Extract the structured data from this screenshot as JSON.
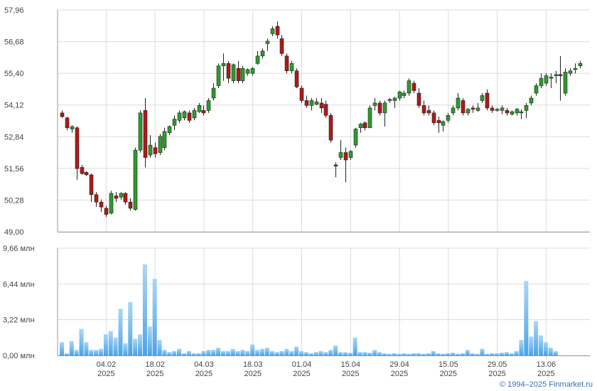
{
  "chart_data": [
    {
      "type": "candlestick",
      "title": "",
      "grid": true,
      "colors": {
        "up": "#2e9b2e",
        "down": "#b01818",
        "wick": "#222222",
        "grid": "#dcdcdc",
        "axis": "#999999"
      },
      "ylim": [
        49.0,
        57.96
      ],
      "y_ticks": [
        "57,96",
        "56,68",
        "55,40",
        "54,12",
        "52,84",
        "51,56",
        "50,28",
        "49,00"
      ],
      "candles": [
        {
          "o": 53.8,
          "h": 53.9,
          "l": 53.6,
          "c": 53.65
        },
        {
          "o": 53.6,
          "h": 53.65,
          "l": 53.1,
          "c": 53.2
        },
        {
          "o": 53.15,
          "h": 53.3,
          "l": 53.0,
          "c": 53.25
        },
        {
          "o": 53.2,
          "h": 53.25,
          "l": 51.1,
          "c": 51.55
        },
        {
          "o": 51.6,
          "h": 51.7,
          "l": 51.3,
          "c": 51.35
        },
        {
          "o": 51.4,
          "h": 51.45,
          "l": 51.25,
          "c": 51.3
        },
        {
          "o": 51.3,
          "h": 51.35,
          "l": 50.2,
          "c": 50.5
        },
        {
          "o": 50.5,
          "h": 50.6,
          "l": 50.0,
          "c": 50.2
        },
        {
          "o": 50.2,
          "h": 50.3,
          "l": 49.8,
          "c": 50.0
        },
        {
          "o": 49.95,
          "h": 50.05,
          "l": 49.6,
          "c": 49.7
        },
        {
          "o": 49.75,
          "h": 50.65,
          "l": 49.7,
          "c": 50.55
        },
        {
          "o": 50.45,
          "h": 50.6,
          "l": 50.2,
          "c": 50.35
        },
        {
          "o": 50.4,
          "h": 50.6,
          "l": 50.3,
          "c": 50.55
        },
        {
          "o": 50.55,
          "h": 50.6,
          "l": 50.1,
          "c": 50.2
        },
        {
          "o": 50.2,
          "h": 50.35,
          "l": 49.85,
          "c": 49.95
        },
        {
          "o": 49.9,
          "h": 52.4,
          "l": 49.85,
          "c": 52.3
        },
        {
          "o": 52.3,
          "h": 53.9,
          "l": 52.2,
          "c": 53.8
        },
        {
          "o": 53.9,
          "h": 54.4,
          "l": 51.6,
          "c": 52.0
        },
        {
          "o": 52.1,
          "h": 52.9,
          "l": 52.0,
          "c": 52.5
        },
        {
          "o": 52.4,
          "h": 52.6,
          "l": 52.0,
          "c": 52.15
        },
        {
          "o": 52.2,
          "h": 52.95,
          "l": 52.1,
          "c": 52.85
        },
        {
          "o": 52.4,
          "h": 53.2,
          "l": 52.3,
          "c": 53.05
        },
        {
          "o": 53.0,
          "h": 53.3,
          "l": 52.9,
          "c": 53.25
        },
        {
          "o": 53.3,
          "h": 53.7,
          "l": 53.1,
          "c": 53.55
        },
        {
          "o": 53.5,
          "h": 53.9,
          "l": 53.4,
          "c": 53.8
        },
        {
          "o": 53.6,
          "h": 53.9,
          "l": 53.5,
          "c": 53.85
        },
        {
          "o": 53.8,
          "h": 53.9,
          "l": 53.4,
          "c": 53.5
        },
        {
          "o": 53.6,
          "h": 54.0,
          "l": 53.5,
          "c": 53.9
        },
        {
          "o": 53.85,
          "h": 54.2,
          "l": 53.8,
          "c": 54.1
        },
        {
          "o": 53.9,
          "h": 54.1,
          "l": 53.7,
          "c": 53.8
        },
        {
          "o": 53.9,
          "h": 54.4,
          "l": 53.8,
          "c": 54.3
        },
        {
          "o": 54.4,
          "h": 55.0,
          "l": 54.3,
          "c": 54.8
        },
        {
          "o": 54.9,
          "h": 55.8,
          "l": 54.8,
          "c": 55.7
        },
        {
          "o": 55.7,
          "h": 56.2,
          "l": 55.1,
          "c": 55.8
        },
        {
          "o": 55.8,
          "h": 55.9,
          "l": 55.0,
          "c": 55.2
        },
        {
          "o": 55.1,
          "h": 55.8,
          "l": 55.0,
          "c": 55.75
        },
        {
          "o": 55.6,
          "h": 55.9,
          "l": 55.0,
          "c": 55.1
        },
        {
          "o": 55.1,
          "h": 55.7,
          "l": 55.0,
          "c": 55.6
        },
        {
          "o": 55.4,
          "h": 55.6,
          "l": 55.3,
          "c": 55.55
        },
        {
          "o": 55.4,
          "h": 55.65,
          "l": 55.3,
          "c": 55.6
        },
        {
          "o": 55.8,
          "h": 56.3,
          "l": 55.75,
          "c": 56.1
        },
        {
          "o": 56.1,
          "h": 56.4,
          "l": 56.0,
          "c": 56.3
        },
        {
          "o": 56.6,
          "h": 56.8,
          "l": 56.3,
          "c": 56.7
        },
        {
          "o": 57.0,
          "h": 57.3,
          "l": 56.9,
          "c": 57.2
        },
        {
          "o": 57.3,
          "h": 57.5,
          "l": 56.8,
          "c": 56.95
        },
        {
          "o": 56.8,
          "h": 56.95,
          "l": 56.1,
          "c": 56.2
        },
        {
          "o": 56.1,
          "h": 56.2,
          "l": 55.4,
          "c": 55.5
        },
        {
          "o": 55.5,
          "h": 55.9,
          "l": 55.4,
          "c": 55.8
        },
        {
          "o": 55.5,
          "h": 55.6,
          "l": 54.8,
          "c": 54.85
        },
        {
          "o": 54.8,
          "h": 54.9,
          "l": 54.2,
          "c": 54.3
        },
        {
          "o": 54.3,
          "h": 54.5,
          "l": 54.0,
          "c": 54.1
        },
        {
          "o": 54.1,
          "h": 54.4,
          "l": 53.9,
          "c": 54.3
        },
        {
          "o": 54.15,
          "h": 54.4,
          "l": 54.1,
          "c": 54.25
        },
        {
          "o": 54.2,
          "h": 54.4,
          "l": 53.8,
          "c": 54.0
        },
        {
          "o": 54.15,
          "h": 54.3,
          "l": 53.6,
          "c": 53.7
        },
        {
          "o": 53.7,
          "h": 53.8,
          "l": 52.6,
          "c": 52.7
        },
        {
          "o": 51.7,
          "h": 51.8,
          "l": 51.2,
          "c": 51.65
        },
        {
          "o": 52.0,
          "h": 52.7,
          "l": 51.9,
          "c": 52.2
        },
        {
          "o": 52.2,
          "h": 52.4,
          "l": 51.0,
          "c": 51.9
        },
        {
          "o": 52.0,
          "h": 52.3,
          "l": 51.9,
          "c": 52.25
        },
        {
          "o": 52.5,
          "h": 53.2,
          "l": 52.4,
          "c": 53.15
        },
        {
          "o": 53.2,
          "h": 53.4,
          "l": 53.0,
          "c": 53.35
        },
        {
          "o": 53.4,
          "h": 53.45,
          "l": 53.1,
          "c": 53.2
        },
        {
          "o": 53.2,
          "h": 54.1,
          "l": 53.2,
          "c": 54.0
        },
        {
          "o": 54.1,
          "h": 54.4,
          "l": 53.9,
          "c": 54.2
        },
        {
          "o": 54.2,
          "h": 54.3,
          "l": 53.7,
          "c": 53.8
        },
        {
          "o": 53.8,
          "h": 54.3,
          "l": 53.25,
          "c": 54.2
        },
        {
          "o": 54.3,
          "h": 54.4,
          "l": 54.2,
          "c": 54.35
        },
        {
          "o": 54.3,
          "h": 54.45,
          "l": 54.0,
          "c": 54.4
        },
        {
          "o": 54.4,
          "h": 54.7,
          "l": 54.3,
          "c": 54.65
        },
        {
          "o": 54.5,
          "h": 54.7,
          "l": 54.4,
          "c": 54.6
        },
        {
          "o": 54.6,
          "h": 55.2,
          "l": 54.5,
          "c": 55.1
        },
        {
          "o": 55.0,
          "h": 55.1,
          "l": 54.6,
          "c": 54.7
        },
        {
          "o": 54.6,
          "h": 54.8,
          "l": 54.0,
          "c": 54.1
        },
        {
          "o": 54.1,
          "h": 54.3,
          "l": 53.7,
          "c": 53.8
        },
        {
          "o": 53.9,
          "h": 54.1,
          "l": 53.7,
          "c": 53.8
        },
        {
          "o": 53.8,
          "h": 53.9,
          "l": 53.3,
          "c": 53.4
        },
        {
          "o": 53.5,
          "h": 53.65,
          "l": 53.0,
          "c": 53.4
        },
        {
          "o": 53.3,
          "h": 53.5,
          "l": 53.05,
          "c": 53.45
        },
        {
          "o": 53.5,
          "h": 53.8,
          "l": 53.4,
          "c": 53.7
        },
        {
          "o": 53.8,
          "h": 54.1,
          "l": 53.7,
          "c": 54.0
        },
        {
          "o": 54.0,
          "h": 54.6,
          "l": 53.9,
          "c": 54.4
        },
        {
          "o": 54.3,
          "h": 54.4,
          "l": 53.7,
          "c": 53.8
        },
        {
          "o": 53.8,
          "h": 54.0,
          "l": 53.7,
          "c": 53.95
        },
        {
          "o": 54.0,
          "h": 54.1,
          "l": 53.8,
          "c": 53.95
        },
        {
          "o": 53.9,
          "h": 54.2,
          "l": 53.85,
          "c": 54.0
        },
        {
          "o": 54.3,
          "h": 54.6,
          "l": 54.2,
          "c": 54.5
        },
        {
          "o": 54.6,
          "h": 54.75,
          "l": 53.9,
          "c": 54.0
        },
        {
          "o": 54.0,
          "h": 54.1,
          "l": 53.8,
          "c": 53.9
        },
        {
          "o": 53.9,
          "h": 54.0,
          "l": 53.85,
          "c": 53.95
        },
        {
          "o": 53.9,
          "h": 54.1,
          "l": 53.75,
          "c": 54.0
        },
        {
          "o": 53.9,
          "h": 54.0,
          "l": 53.7,
          "c": 53.8
        },
        {
          "o": 53.75,
          "h": 53.9,
          "l": 53.7,
          "c": 53.85
        },
        {
          "o": 53.8,
          "h": 54.0,
          "l": 53.7,
          "c": 53.95
        },
        {
          "o": 53.8,
          "h": 53.95,
          "l": 53.55,
          "c": 53.85
        },
        {
          "o": 53.9,
          "h": 54.2,
          "l": 53.6,
          "c": 54.1
        },
        {
          "o": 54.2,
          "h": 54.5,
          "l": 54.1,
          "c": 54.4
        },
        {
          "o": 54.6,
          "h": 55.0,
          "l": 54.5,
          "c": 54.9
        },
        {
          "o": 54.9,
          "h": 55.4,
          "l": 54.8,
          "c": 55.2
        },
        {
          "o": 55.0,
          "h": 55.4,
          "l": 54.9,
          "c": 55.3
        },
        {
          "o": 55.2,
          "h": 55.4,
          "l": 54.8,
          "c": 55.25
        },
        {
          "o": 55.3,
          "h": 55.5,
          "l": 55.0,
          "c": 55.35
        },
        {
          "o": 55.35,
          "h": 56.1,
          "l": 54.3,
          "c": 55.3
        },
        {
          "o": 54.6,
          "h": 55.6,
          "l": 54.5,
          "c": 55.45
        },
        {
          "o": 55.4,
          "h": 55.6,
          "l": 55.3,
          "c": 55.5
        },
        {
          "o": 55.55,
          "h": 55.8,
          "l": 55.4,
          "c": 55.6
        },
        {
          "o": 55.7,
          "h": 55.9,
          "l": 55.6,
          "c": 55.8
        }
      ]
    },
    {
      "type": "bar",
      "title": "",
      "grid": true,
      "unit": "млн",
      "colors": {
        "bar_top": "#aad6f6",
        "bar_bottom": "#4aa3e8",
        "grid": "#dcdcdc",
        "axis": "#999999"
      },
      "ylim": [
        0,
        9.66
      ],
      "y_ticks": [
        "9,66 млн",
        "6,44 млн",
        "3,22 млн",
        "0,00 млн"
      ],
      "x_ticks": [
        {
          "line1": "04.02",
          "line2": "2025",
          "index": 9
        },
        {
          "line1": "18.02",
          "line2": "2025",
          "index": 19
        },
        {
          "line1": "04.03",
          "line2": "2025",
          "index": 29
        },
        {
          "line1": "18.03",
          "line2": "2025",
          "index": 39
        },
        {
          "line1": "01.04",
          "line2": "2025",
          "index": 49
        },
        {
          "line1": "15.04",
          "line2": "2025",
          "index": 59
        },
        {
          "line1": "29.04",
          "line2": "2025",
          "index": 69
        },
        {
          "line1": "15.05",
          "line2": "2025",
          "index": 79
        },
        {
          "line1": "29.05",
          "line2": "2025",
          "index": 89
        },
        {
          "line1": "13.06",
          "line2": "2025",
          "index": 99
        }
      ],
      "values": [
        1.2,
        0.2,
        1.3,
        0.5,
        2.4,
        1.2,
        0.5,
        0.5,
        0.6,
        1.9,
        2.2,
        1.6,
        4.2,
        1.1,
        4.8,
        1.5,
        1.9,
        8.2,
        2.6,
        6.9,
        1.4,
        0.5,
        0.3,
        0.4,
        0.6,
        0.2,
        0.4,
        0.2,
        0.2,
        0.4,
        0.5,
        0.5,
        0.7,
        0.4,
        0.4,
        0.6,
        0.4,
        0.5,
        0.4,
        1.0,
        0.5,
        0.6,
        0.7,
        0.4,
        0.3,
        0.4,
        0.6,
        0.4,
        0.8,
        0.4,
        0.3,
        0.2,
        0.3,
        0.4,
        0.3,
        0.5,
        0.9,
        0.3,
        0.3,
        0.25,
        1.6,
        0.3,
        0.3,
        0.25,
        0.5,
        0.3,
        0.2,
        0.15,
        0.2,
        0.15,
        0.2,
        0.15,
        0.2,
        0.2,
        0.15,
        0.2,
        0.4,
        0.2,
        0.15,
        0.2,
        0.25,
        0.15,
        0.2,
        0.5,
        0.2,
        0.15,
        0.6,
        0.15,
        0.2,
        0.2,
        0.25,
        0.3,
        0.2,
        0.4,
        1.4,
        6.7,
        1.7,
        3.1,
        1.8,
        1.2,
        0.7,
        0.4
      ]
    }
  ],
  "copyright": "© 1994–2025 Finmarket.ru"
}
